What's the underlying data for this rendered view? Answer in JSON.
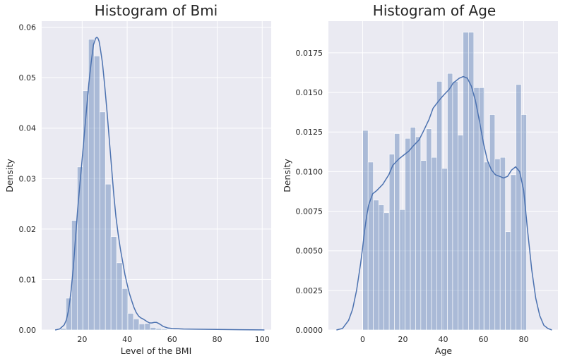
{
  "chart_data": [
    {
      "type": "histogram",
      "title": "Histogram of Bmi",
      "xlabel": "Level of the BMI",
      "ylabel": "Density",
      "xlim": [
        2,
        104
      ],
      "ylim": [
        0,
        0.0612
      ],
      "xticks": [
        20,
        40,
        60,
        80,
        100
      ],
      "yticks": [
        0.0,
        0.01,
        0.02,
        0.03,
        0.04,
        0.05,
        0.06
      ],
      "ytick_format": 2,
      "grid": true,
      "bars": [
        {
          "x0": 10.3,
          "x1": 12.8,
          "density": 0.0003
        },
        {
          "x0": 12.8,
          "x1": 15.3,
          "density": 0.0063
        },
        {
          "x0": 15.3,
          "x1": 17.8,
          "density": 0.0217
        },
        {
          "x0": 17.8,
          "x1": 20.3,
          "density": 0.0323
        },
        {
          "x0": 20.3,
          "x1": 22.8,
          "density": 0.0474
        },
        {
          "x0": 22.8,
          "x1": 25.3,
          "density": 0.0576
        },
        {
          "x0": 25.3,
          "x1": 27.8,
          "density": 0.0543
        },
        {
          "x0": 27.8,
          "x1": 30.3,
          "density": 0.0432
        },
        {
          "x0": 30.3,
          "x1": 32.8,
          "density": 0.0289
        },
        {
          "x0": 32.8,
          "x1": 35.3,
          "density": 0.0185
        },
        {
          "x0": 35.3,
          "x1": 37.8,
          "density": 0.0133
        },
        {
          "x0": 37.8,
          "x1": 40.3,
          "density": 0.0082
        },
        {
          "x0": 40.3,
          "x1": 42.8,
          "density": 0.0033
        },
        {
          "x0": 42.8,
          "x1": 45.3,
          "density": 0.0022
        },
        {
          "x0": 45.3,
          "x1": 47.8,
          "density": 0.0012
        },
        {
          "x0": 47.8,
          "x1": 50.3,
          "density": 0.0013
        },
        {
          "x0": 50.3,
          "x1": 52.8,
          "density": 0.0005
        },
        {
          "x0": 52.8,
          "x1": 55.3,
          "density": 0.0003
        },
        {
          "x0": 55.3,
          "x1": 57.8,
          "density": 0.0002
        },
        {
          "x0": 57.8,
          "x1": 60.3,
          "density": 0.0001
        }
      ],
      "kde": {
        "x": [
          8,
          10,
          12,
          13,
          14,
          15,
          16,
          17,
          18,
          19,
          20,
          21,
          22,
          23,
          24,
          25,
          26,
          26.5,
          27,
          27.5,
          28,
          29,
          30,
          31,
          32,
          33,
          34,
          35,
          36,
          37,
          38,
          39,
          40,
          41,
          42,
          43,
          44,
          45,
          46,
          47,
          48,
          49,
          50,
          51,
          52,
          53,
          54,
          55,
          56,
          58,
          60,
          65,
          70,
          80,
          90,
          100,
          101
        ],
        "y": [
          0.0,
          0.0002,
          0.001,
          0.002,
          0.004,
          0.0075,
          0.012,
          0.018,
          0.024,
          0.029,
          0.034,
          0.039,
          0.044,
          0.049,
          0.053,
          0.0565,
          0.0578,
          0.058,
          0.0578,
          0.0572,
          0.056,
          0.053,
          0.0485,
          0.0435,
          0.038,
          0.0325,
          0.027,
          0.0225,
          0.019,
          0.016,
          0.0135,
          0.011,
          0.009,
          0.0072,
          0.0058,
          0.0045,
          0.0035,
          0.0028,
          0.0024,
          0.0022,
          0.0019,
          0.0016,
          0.0014,
          0.0014,
          0.0015,
          0.0015,
          0.0013,
          0.001,
          0.0007,
          0.0004,
          0.0003,
          0.0002,
          0.00015,
          0.0001,
          5e-05,
          2e-05,
          0.0
        ]
      }
    },
    {
      "type": "histogram",
      "title": "Histogram of Age",
      "xlabel": "Age",
      "ylabel": "Density",
      "xlim": [
        -17,
        97
      ],
      "ylim": [
        0,
        0.0195
      ],
      "xticks": [
        0,
        20,
        40,
        60,
        80
      ],
      "yticks": [
        0.0,
        0.0025,
        0.005,
        0.0075,
        0.01,
        0.0125,
        0.015,
        0.0175
      ],
      "ytick_format": 4,
      "grid": true,
      "bars": [
        {
          "x0": 0.08,
          "x1": 2.7,
          "density": 0.0126
        },
        {
          "x0": 2.7,
          "x1": 5.3,
          "density": 0.0106
        },
        {
          "x0": 5.3,
          "x1": 8.0,
          "density": 0.0082
        },
        {
          "x0": 8.0,
          "x1": 10.6,
          "density": 0.0079
        },
        {
          "x0": 10.6,
          "x1": 13.2,
          "density": 0.0074
        },
        {
          "x0": 13.2,
          "x1": 15.8,
          "density": 0.0111
        },
        {
          "x0": 15.8,
          "x1": 18.4,
          "density": 0.0124
        },
        {
          "x0": 18.4,
          "x1": 21.1,
          "density": 0.0076
        },
        {
          "x0": 21.1,
          "x1": 23.7,
          "density": 0.0121
        },
        {
          "x0": 23.7,
          "x1": 26.3,
          "density": 0.0128
        },
        {
          "x0": 26.3,
          "x1": 28.9,
          "density": 0.0122
        },
        {
          "x0": 28.9,
          "x1": 31.6,
          "density": 0.0107
        },
        {
          "x0": 31.6,
          "x1": 34.2,
          "density": 0.0127
        },
        {
          "x0": 34.2,
          "x1": 36.8,
          "density": 0.0109
        },
        {
          "x0": 36.8,
          "x1": 39.4,
          "density": 0.0157
        },
        {
          "x0": 39.4,
          "x1": 42.1,
          "density": 0.0102
        },
        {
          "x0": 42.1,
          "x1": 44.7,
          "density": 0.0162
        },
        {
          "x0": 44.7,
          "x1": 47.3,
          "density": 0.0157
        },
        {
          "x0": 47.3,
          "x1": 49.9,
          "density": 0.0123
        },
        {
          "x0": 49.9,
          "x1": 52.6,
          "density": 0.0188
        },
        {
          "x0": 52.6,
          "x1": 55.2,
          "density": 0.0188
        },
        {
          "x0": 55.2,
          "x1": 57.8,
          "density": 0.0153
        },
        {
          "x0": 57.8,
          "x1": 60.4,
          "density": 0.0153
        },
        {
          "x0": 60.4,
          "x1": 63.1,
          "density": 0.0106
        },
        {
          "x0": 63.1,
          "x1": 65.7,
          "density": 0.0136
        },
        {
          "x0": 65.7,
          "x1": 68.3,
          "density": 0.0108
        },
        {
          "x0": 68.3,
          "x1": 70.9,
          "density": 0.0109
        },
        {
          "x0": 70.9,
          "x1": 73.5,
          "density": 0.0062
        },
        {
          "x0": 73.5,
          "x1": 76.2,
          "density": 0.0098
        },
        {
          "x0": 76.2,
          "x1": 78.8,
          "density": 0.0155
        },
        {
          "x0": 78.8,
          "x1": 81.4,
          "density": 0.0136
        }
      ],
      "kde": {
        "x": [
          -13,
          -10,
          -7,
          -5,
          -3,
          -1,
          0,
          1,
          2,
          3,
          5,
          7,
          10,
          13,
          15,
          18,
          20,
          23,
          25,
          28,
          30,
          33,
          35,
          38,
          40,
          43,
          45,
          48,
          50,
          52,
          54,
          56,
          58,
          60,
          62,
          64,
          66,
          68,
          70,
          72,
          74,
          76,
          78,
          80,
          82,
          84,
          86,
          88,
          90,
          92,
          94
        ],
        "y": [
          0.0,
          0.0001,
          0.0006,
          0.0013,
          0.0025,
          0.0042,
          0.0052,
          0.0063,
          0.0072,
          0.0079,
          0.0086,
          0.0088,
          0.0092,
          0.0098,
          0.0104,
          0.0108,
          0.011,
          0.0113,
          0.0116,
          0.012,
          0.0125,
          0.0133,
          0.014,
          0.0145,
          0.0148,
          0.0152,
          0.0156,
          0.0159,
          0.016,
          0.0159,
          0.0154,
          0.0145,
          0.0132,
          0.0118,
          0.0107,
          0.0101,
          0.0098,
          0.0097,
          0.0096,
          0.0097,
          0.0101,
          0.0103,
          0.01,
          0.0088,
          0.0062,
          0.0038,
          0.002,
          0.0009,
          0.0003,
          0.0001,
          0.0
        ]
      }
    }
  ]
}
